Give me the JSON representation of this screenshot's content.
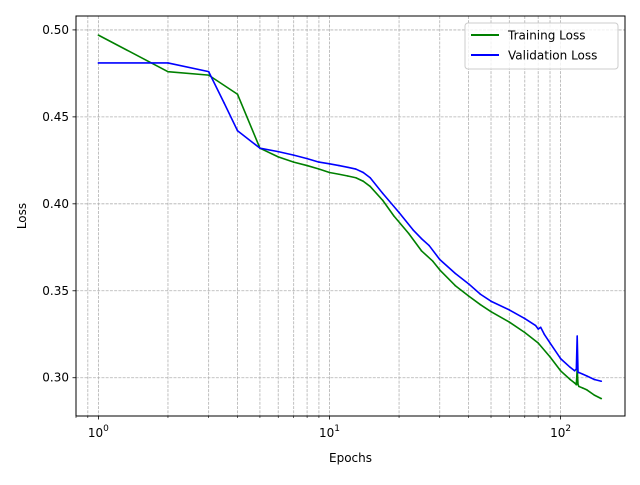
{
  "chart_data": {
    "type": "line",
    "title": "",
    "xlabel": "Epochs",
    "ylabel": "Loss",
    "xscale": "log",
    "xlim": [
      0.8,
      190
    ],
    "ylim": [
      0.278,
      0.508
    ],
    "grid": "on, major and minor, dashed",
    "legend_position": "top-right",
    "xticks": [
      {
        "value": 1,
        "base": "10",
        "exp": "0"
      },
      {
        "value": 10,
        "base": "10",
        "exp": "1"
      },
      {
        "value": 100,
        "base": "10",
        "exp": "2"
      }
    ],
    "yticks": [
      {
        "value": 0.3,
        "label": "0.30"
      },
      {
        "value": 0.35,
        "label": "0.35"
      },
      {
        "value": 0.4,
        "label": "0.40"
      },
      {
        "value": 0.45,
        "label": "0.45"
      },
      {
        "value": 0.5,
        "label": "0.50"
      }
    ],
    "series": [
      {
        "name": "Training Loss",
        "color": "#008000",
        "x": [
          1,
          2,
          3,
          4,
          5,
          6,
          7,
          8,
          9,
          10,
          11,
          12,
          13,
          14,
          15,
          17,
          19,
          22,
          25,
          28,
          30,
          35,
          40,
          45,
          50,
          60,
          70,
          80,
          90,
          100,
          110,
          115,
          117,
          118,
          119,
          120,
          125,
          130,
          140,
          150
        ],
        "y": [
          0.497,
          0.476,
          0.474,
          0.463,
          0.432,
          0.427,
          0.424,
          0.422,
          0.42,
          0.418,
          0.417,
          0.416,
          0.415,
          0.413,
          0.41,
          0.402,
          0.393,
          0.383,
          0.373,
          0.367,
          0.362,
          0.353,
          0.347,
          0.342,
          0.338,
          0.332,
          0.326,
          0.32,
          0.312,
          0.304,
          0.299,
          0.297,
          0.296,
          0.305,
          0.296,
          0.295,
          0.294,
          0.293,
          0.29,
          0.288
        ]
      },
      {
        "name": "Validation Loss",
        "color": "#0000ff",
        "x": [
          1,
          2,
          3,
          3.5,
          4,
          5,
          6,
          7,
          8,
          9,
          10,
          11,
          12,
          13,
          14,
          15,
          17,
          20,
          23,
          25,
          27,
          30,
          35,
          40,
          45,
          50,
          60,
          70,
          78,
          80,
          82,
          85,
          90,
          100,
          110,
          115,
          117,
          118,
          119,
          120,
          125,
          130,
          140,
          150
        ],
        "y": [
          0.481,
          0.481,
          0.476,
          0.458,
          0.442,
          0.432,
          0.43,
          0.428,
          0.426,
          0.424,
          0.423,
          0.422,
          0.421,
          0.42,
          0.418,
          0.415,
          0.406,
          0.395,
          0.385,
          0.38,
          0.376,
          0.368,
          0.36,
          0.354,
          0.348,
          0.344,
          0.339,
          0.334,
          0.33,
          0.328,
          0.329,
          0.325,
          0.32,
          0.311,
          0.306,
          0.304,
          0.305,
          0.324,
          0.303,
          0.303,
          0.302,
          0.301,
          0.299,
          0.298
        ]
      }
    ]
  }
}
